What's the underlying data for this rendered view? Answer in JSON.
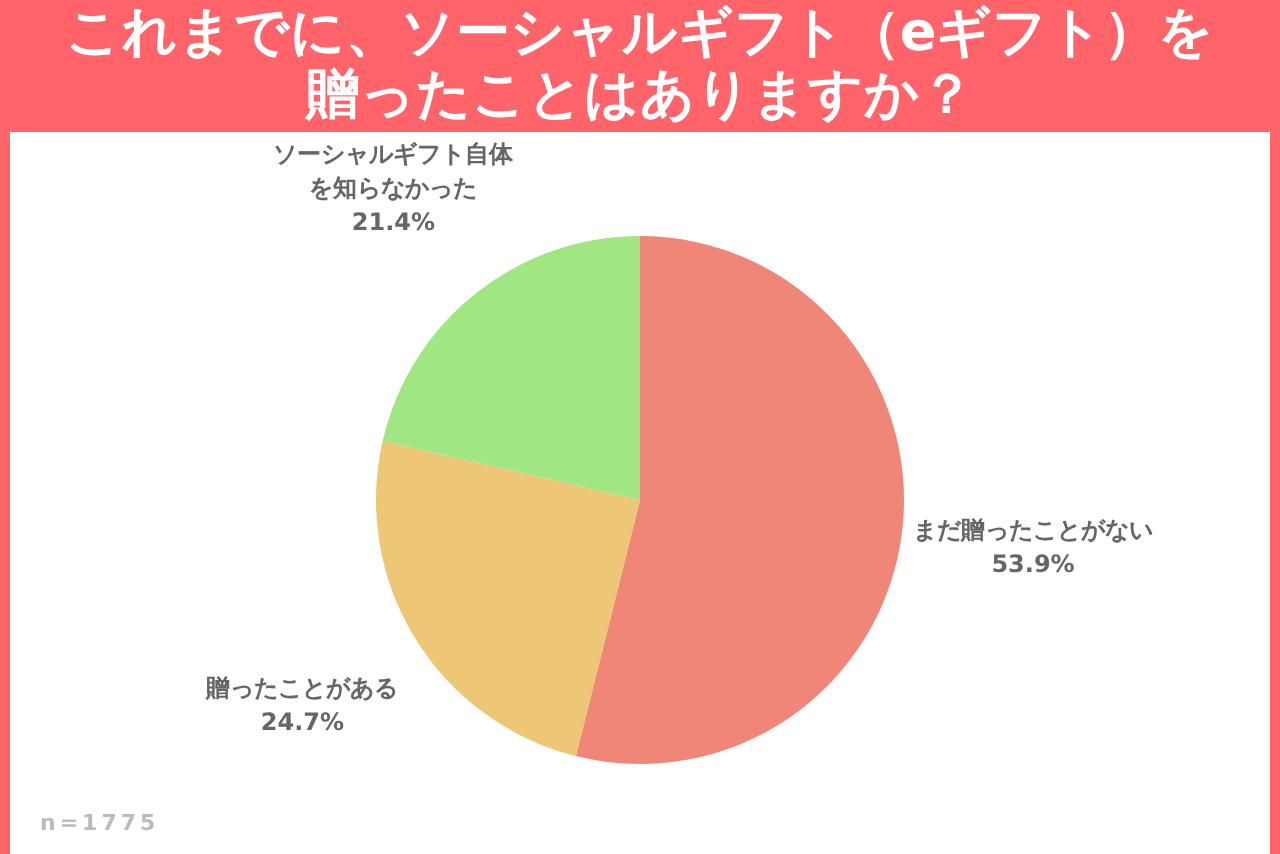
{
  "chart_data": {
    "type": "pie",
    "title": "これまでに、ソーシャルギフト（eギフト）を贈ったことはありますか？",
    "categories": [
      "まだ贈ったことがない",
      "贈ったことがある",
      "ソーシャルギフト自体を知らなかった"
    ],
    "values": [
      53.9,
      24.7,
      21.4
    ],
    "colors": [
      "#ef8677",
      "#edc775",
      "#a0e682"
    ],
    "value_labels": [
      "53.9%",
      "24.7%",
      "21.4%"
    ],
    "annotations": [
      "n=1775"
    ]
  }
}
